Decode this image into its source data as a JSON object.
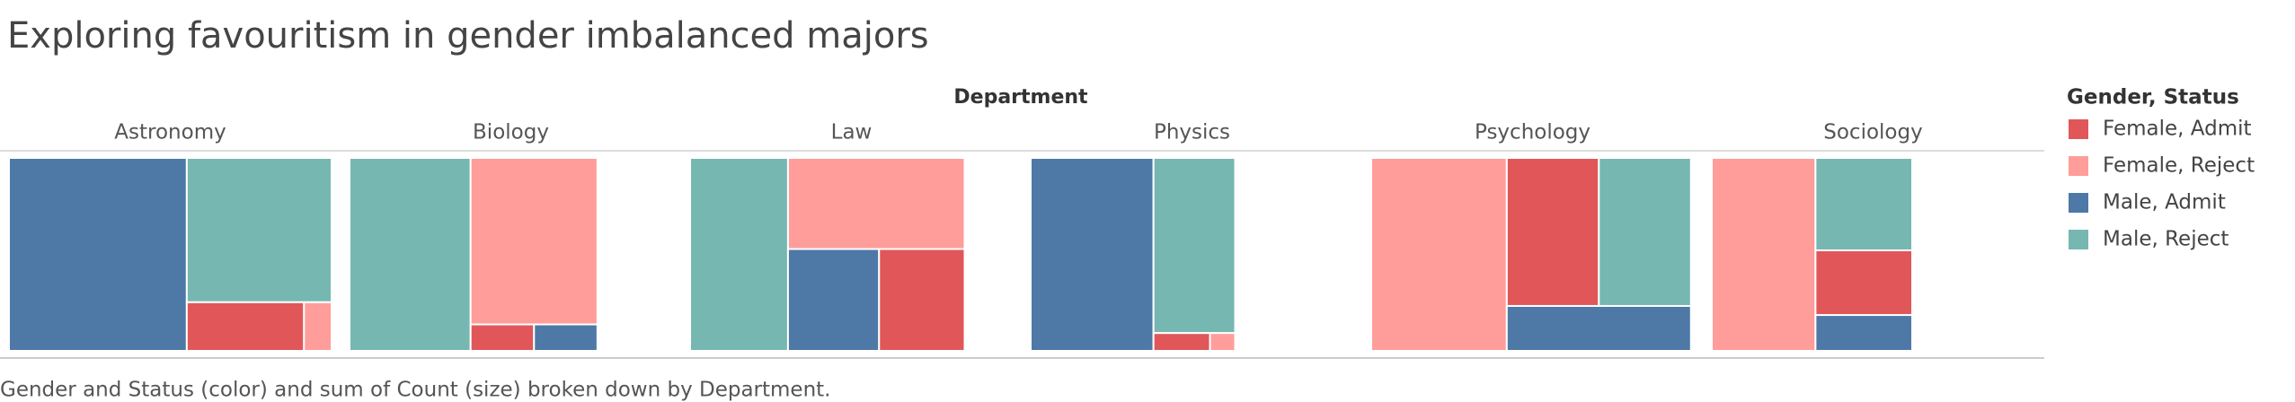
{
  "chart_data": {
    "type": "treemap",
    "title": "Exploring favouritism in gender imbalanced majors",
    "column_header": "Department",
    "caption": "Gender and Status (color) and sum of Count (size) broken down by Department.",
    "legend_title": "Gender, Status",
    "categories": [
      "Astronomy",
      "Biology",
      "Law",
      "Physics",
      "Psychology",
      "Sociology"
    ],
    "series": [
      {
        "name": "Female, Admit",
        "color": "#e15759",
        "values": [
          51,
          15,
          78,
          9,
          122,
          56
        ]
      },
      {
        "name": "Female, Reject",
        "color": "#ff9d9a",
        "values": [
          12,
          189,
          144,
          4,
          234,
          179
        ]
      },
      {
        "name": "Male, Admit",
        "color": "#4e79a7",
        "values": [
          307,
          15,
          83,
          212,
          74,
          31
        ]
      },
      {
        "name": "Male, Reject",
        "color": "#76b7b2",
        "values": [
          187,
          209,
          169,
          128,
          122,
          80
        ]
      }
    ]
  }
}
